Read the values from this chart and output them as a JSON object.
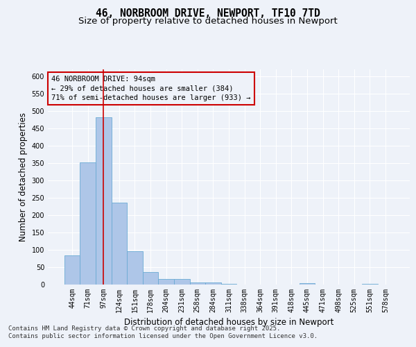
{
  "title_line1": "46, NORBROOM DRIVE, NEWPORT, TF10 7TD",
  "title_line2": "Size of property relative to detached houses in Newport",
  "xlabel": "Distribution of detached houses by size in Newport",
  "ylabel": "Number of detached properties",
  "categories": [
    "44sqm",
    "71sqm",
    "97sqm",
    "124sqm",
    "151sqm",
    "178sqm",
    "204sqm",
    "231sqm",
    "258sqm",
    "284sqm",
    "311sqm",
    "338sqm",
    "364sqm",
    "391sqm",
    "418sqm",
    "445sqm",
    "471sqm",
    "498sqm",
    "525sqm",
    "551sqm",
    "578sqm"
  ],
  "values": [
    85,
    352,
    482,
    236,
    97,
    36,
    17,
    17,
    6,
    6,
    3,
    0,
    0,
    0,
    0,
    4,
    0,
    0,
    0,
    2,
    0
  ],
  "bar_color": "#aec6e8",
  "bar_edge_color": "#6aaad4",
  "property_line_index": 2,
  "property_line_color": "#cc0000",
  "annotation_text": "46 NORBROOM DRIVE: 94sqm\n← 29% of detached houses are smaller (384)\n71% of semi-detached houses are larger (933) →",
  "annotation_box_color": "#cc0000",
  "ylim": [
    0,
    620
  ],
  "yticks": [
    0,
    50,
    100,
    150,
    200,
    250,
    300,
    350,
    400,
    450,
    500,
    550,
    600
  ],
  "background_color": "#eef2f9",
  "grid_color": "#ffffff",
  "footer_line1": "Contains HM Land Registry data © Crown copyright and database right 2025.",
  "footer_line2": "Contains public sector information licensed under the Open Government Licence v3.0.",
  "title_fontsize": 10.5,
  "subtitle_fontsize": 9.5,
  "axis_label_fontsize": 8.5,
  "tick_fontsize": 7,
  "annotation_fontsize": 7.5,
  "footer_fontsize": 6.5
}
